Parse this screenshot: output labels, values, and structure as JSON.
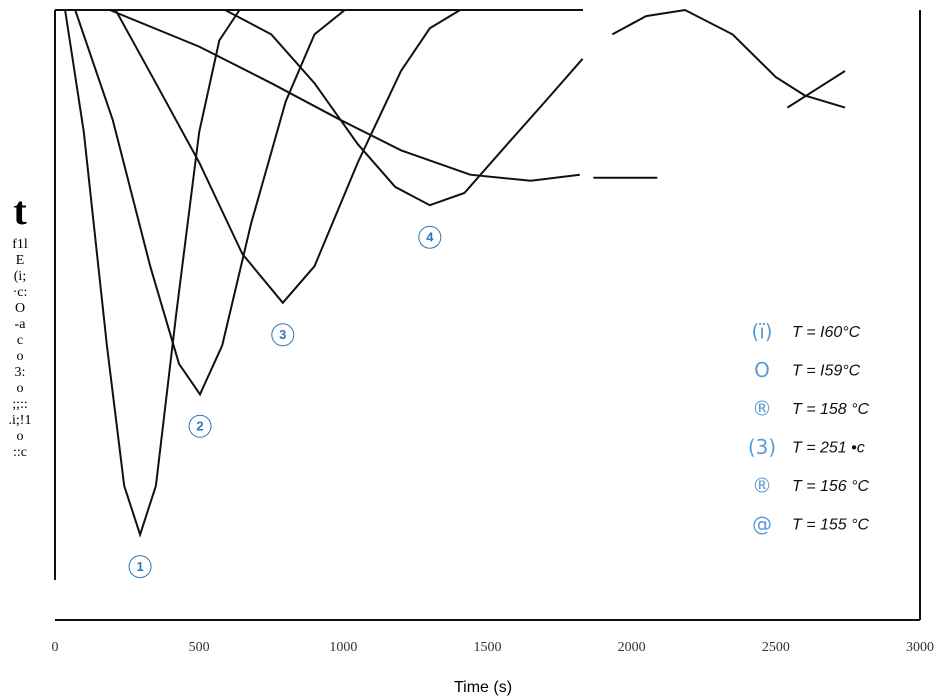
{
  "chart_data": {
    "type": "line",
    "xlabel": "Time (s)",
    "ylabel_fragments": [
      "t",
      "f1l",
      "E",
      "(i;",
      "·c:",
      "O",
      "-a",
      "c",
      "o",
      "3:",
      "o",
      ";;::",
      ".i;!1",
      "o",
      "::c"
    ],
    "xlim": [
      0,
      3000
    ],
    "xticks": [
      0,
      500,
      1000,
      1500,
      2000,
      2500,
      3000
    ],
    "ylim": [
      0,
      100
    ],
    "grid": false,
    "series": [
      {
        "label": "1",
        "color": "#111111",
        "x": [
          35,
          100,
          180,
          240,
          295,
          350,
          420,
          500,
          570,
          640
        ],
        "values": [
          100,
          80,
          45,
          22,
          14,
          22,
          50,
          80,
          95,
          100
        ]
      },
      {
        "label": "2",
        "color": "#111111",
        "x": [
          70,
          200,
          330,
          430,
          503,
          580,
          680,
          800,
          900,
          1005
        ],
        "values": [
          100,
          82,
          58,
          42,
          37,
          45,
          65,
          85,
          96,
          100
        ]
      },
      {
        "label": "3",
        "color": "#111111",
        "x": [
          210,
          350,
          500,
          650,
          790,
          900,
          1050,
          1200,
          1300,
          1405
        ],
        "values": [
          100,
          88,
          75,
          60,
          52,
          58,
          75,
          90,
          97,
          100
        ]
      },
      {
        "label": "4",
        "color": "#111111",
        "x": [
          590,
          750,
          900,
          1050,
          1180,
          1300,
          1420,
          1550,
          1700,
          1830
        ],
        "values": [
          100,
          96,
          88,
          78,
          71,
          68,
          70,
          77,
          85,
          92
        ]
      },
      {
        "color": "#111111",
        "x": [
          190,
          500,
          750,
          989,
          1200,
          1440,
          1650,
          1820
        ],
        "values": [
          100,
          94,
          88,
          82,
          77,
          73,
          72,
          73
        ]
      },
      {
        "color": "#111111",
        "x": [
          1867,
          2089
        ],
        "values": [
          72.5,
          72.5
        ]
      },
      {
        "color": "#111111",
        "x": [
          1933,
          2050,
          2185,
          2350,
          2500,
          2600,
          2740
        ],
        "values": [
          96,
          99,
          100,
          96,
          89,
          86,
          84
        ]
      },
      {
        "color": "#111111",
        "x": [
          2540,
          2640,
          2740
        ],
        "values": [
          84,
          87,
          90
        ]
      }
    ],
    "label_color": "#2e75b6",
    "legend": [
      {
        "marker": "(ï)",
        "label": "T = I60°C"
      },
      {
        "marker": "O",
        "label": "T = I59°C"
      },
      {
        "marker": "®",
        "label": "T = 158 °C"
      },
      {
        "marker": "(3)",
        "label": "T = 251 •c"
      },
      {
        "marker": "®",
        "label": "T = 156 °C"
      },
      {
        "marker": "@",
        "label": "T = 155 °C"
      }
    ],
    "legend_color": "#5b9bd5"
  }
}
